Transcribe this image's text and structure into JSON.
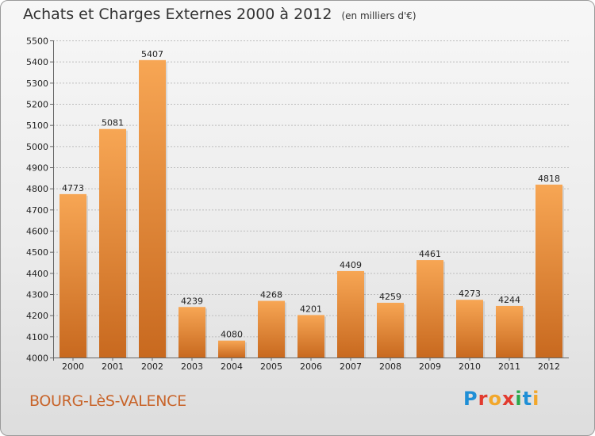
{
  "header": {
    "title": "Achats et Charges Externes 2000 à 2012",
    "unit": "(en milliers d'€)"
  },
  "footer": {
    "city": "BOURG-LèS-VALENCE",
    "logo": "Proxiti"
  },
  "colors": {
    "bar_top": "#f7a654",
    "bar_bottom": "#c8691f",
    "city": "#c8642a"
  },
  "chart_data": {
    "type": "bar",
    "categories": [
      "2000",
      "2001",
      "2002",
      "2003",
      "2004",
      "2005",
      "2006",
      "2007",
      "2008",
      "2009",
      "2010",
      "2011",
      "2012"
    ],
    "values": [
      4773,
      5081,
      5407,
      4239,
      4080,
      4268,
      4201,
      4409,
      4259,
      4461,
      4273,
      4244,
      4818
    ],
    "title": "Achats et Charges Externes 2000 à 2012",
    "ylabel": "(en milliers d'€)",
    "ylim": [
      4000,
      5500
    ],
    "yticks": [
      4000,
      4100,
      4200,
      4300,
      4400,
      4500,
      4600,
      4700,
      4800,
      4900,
      5000,
      5100,
      5200,
      5300,
      5400,
      5500
    ],
    "grid": true,
    "legend": "none"
  }
}
